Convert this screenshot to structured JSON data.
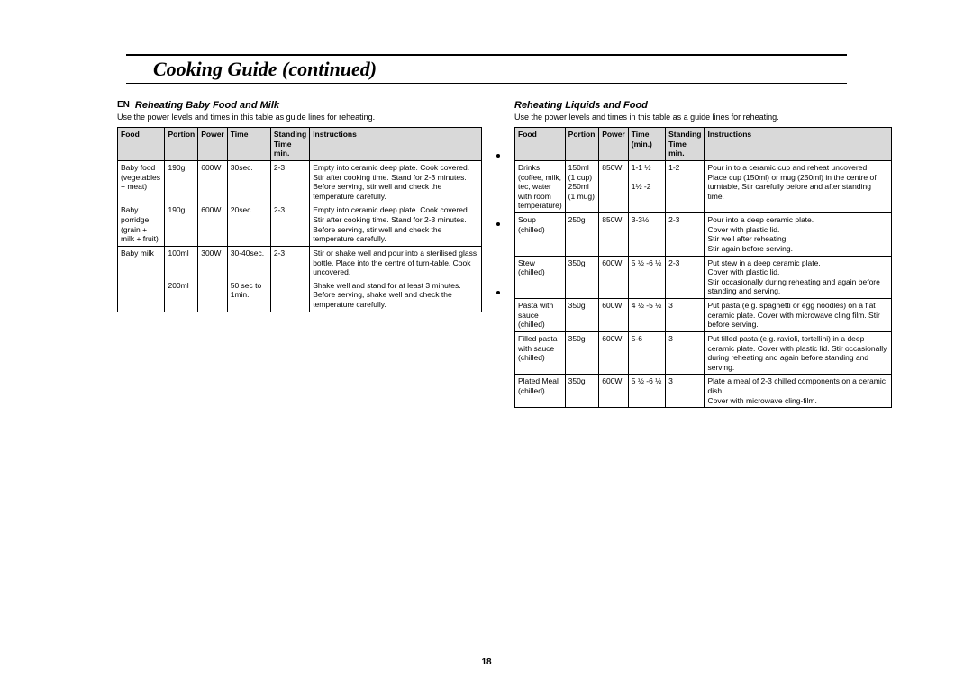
{
  "page_title": "Cooking Guide (continued)",
  "lang_tag": "EN",
  "page_number": "18",
  "left_section": {
    "title": "Reheating Baby Food and Milk",
    "intro": "Use the power levels and times in this table as guide lines for reheating.",
    "headers": [
      "Food",
      "Portion",
      "Power",
      "Time",
      "Standing Time min.",
      "Instructions"
    ],
    "rows": [
      {
        "sep": true,
        "food": "Baby food (vegetables + meat)",
        "portion": "190g",
        "power": "600W",
        "time": "30sec.",
        "stand": "2-3",
        "instr": "Empty into ceramic deep plate. Cook covered. Stir after cooking time. Stand for 2-3 minutes. Before serving, stir well and check the temperature carefully."
      },
      {
        "sep": true,
        "food": "Baby porridge (grain + milk + fruit)",
        "portion": "190g",
        "power": "600W",
        "time": "20sec.",
        "stand": "2-3",
        "instr": "Empty into ceramic deep plate. Cook covered. Stir after cooking time. Stand for 2-3 minutes. Before serving, stir well and check the temperature carefully."
      },
      {
        "sep": true,
        "food": "Baby milk",
        "portion": "100ml",
        "power": "300W",
        "time": "30-40sec.",
        "stand": "2-3",
        "instr": "Stir or shake well and pour into a sterilised glass bottle. Place into the centre of turn-table. Cook uncovered."
      },
      {
        "sep": false,
        "food": "",
        "portion": "200ml",
        "power": "",
        "time": "50 sec to 1min.",
        "stand": "",
        "instr": "Shake well and stand for at least 3 minutes. Before serving, shake well and check the temperature carefully."
      }
    ]
  },
  "right_section": {
    "title": "Reheating Liquids and Food",
    "intro": "Use the power levels and times in this table as a guide lines for reheating.",
    "headers": [
      "Food",
      "Portion",
      "Power",
      "Time (min.)",
      "Standing Time min.",
      "Instructions"
    ],
    "rows": [
      {
        "sep": true,
        "food": "Drinks (coffee, milk, tec, water with room temperature)",
        "portion": "150ml (1 cup) 250ml (1 mug)",
        "power": "850W",
        "time": "1-1 ½\n\n1½ -2",
        "stand": "1-2",
        "instr": "Pour in to a ceramic cup and reheat uncovered. Place cup (150ml) or mug (250ml) in the centre of turntable, Stir carefully before and after standing time."
      },
      {
        "sep": true,
        "food": "Soup (chilled)",
        "portion": "250g",
        "power": "850W",
        "time": "3-3½",
        "stand": "2-3",
        "instr": "Pour into a deep ceramic plate.\nCover with plastic lid.\nStir well after reheating.\nStir again before serving."
      },
      {
        "sep": true,
        "food": "Stew (chilled)",
        "portion": "350g",
        "power": "600W",
        "time": "5 ½ -6 ½",
        "stand": "2-3",
        "instr": "Put stew in a deep ceramic plate.\nCover with plastic lid.\nStir occasionally during reheating and again before standing and serving."
      },
      {
        "sep": true,
        "food": "Pasta with sauce (chilled)",
        "portion": "350g",
        "power": "600W",
        "time": "4 ½ -5 ½",
        "stand": "3",
        "instr": "Put pasta (e.g. spaghetti or egg noodles) on a flat ceramic plate. Cover with microwave cling film. Stir before serving."
      },
      {
        "sep": true,
        "food": "Filled pasta with sauce (chilled)",
        "portion": "350g",
        "power": "600W",
        "time": "5-6",
        "stand": "3",
        "instr": "Put filled pasta (e.g. ravioli, tortellini) in a deep ceramic plate. Cover with plastic lid. Stir occasionally during reheating and again before standing and serving."
      },
      {
        "sep": true,
        "food": "Plated Meal (chilled)",
        "portion": "350g",
        "power": "600W",
        "time": "5 ½ -6 ½",
        "stand": "3",
        "instr": "Plate a meal of 2-3 chilled components on a ceramic dish.\nCover with microwave cling-film."
      }
    ]
  }
}
